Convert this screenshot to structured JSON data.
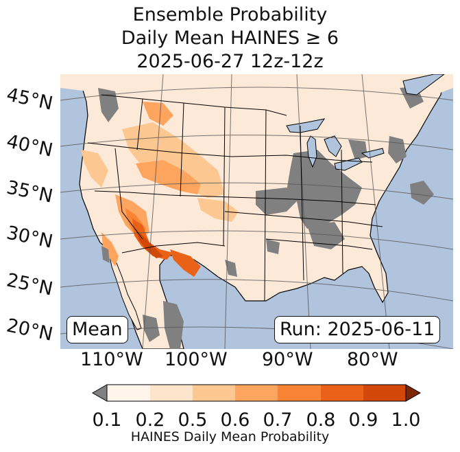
{
  "title": {
    "line1": "Ensemble Probability",
    "line2": "Daily Mean HAINES ≥ 6",
    "line3": "2025-06-27 12z-12z"
  },
  "map": {
    "lat_labels": [
      "45°N",
      "40°N",
      "35°N",
      "30°N",
      "25°N",
      "20°N"
    ],
    "lon_labels": [
      "110°W",
      "100°W",
      "90°W",
      "80°W"
    ],
    "stat_label": "Mean",
    "run_label": "Run: 2025-06-11",
    "colors": {
      "ocean": "#b0c4de",
      "land": "#fde9d7",
      "missing": "#808080",
      "border": "#000000",
      "graticule": "#555555"
    }
  },
  "colorbar": {
    "title": "HAINES Daily Mean Probability",
    "ticks": [
      "0.1",
      "0.2",
      "0.5",
      "0.6",
      "0.7",
      "0.8",
      "0.9",
      "1.0"
    ],
    "under_color": "#808080",
    "colors": [
      "#fff5eb",
      "#fde5cc",
      "#fdc791",
      "#fda45e",
      "#f98436",
      "#ea6218",
      "#d24808"
    ],
    "over_color": "#7f2704"
  }
}
